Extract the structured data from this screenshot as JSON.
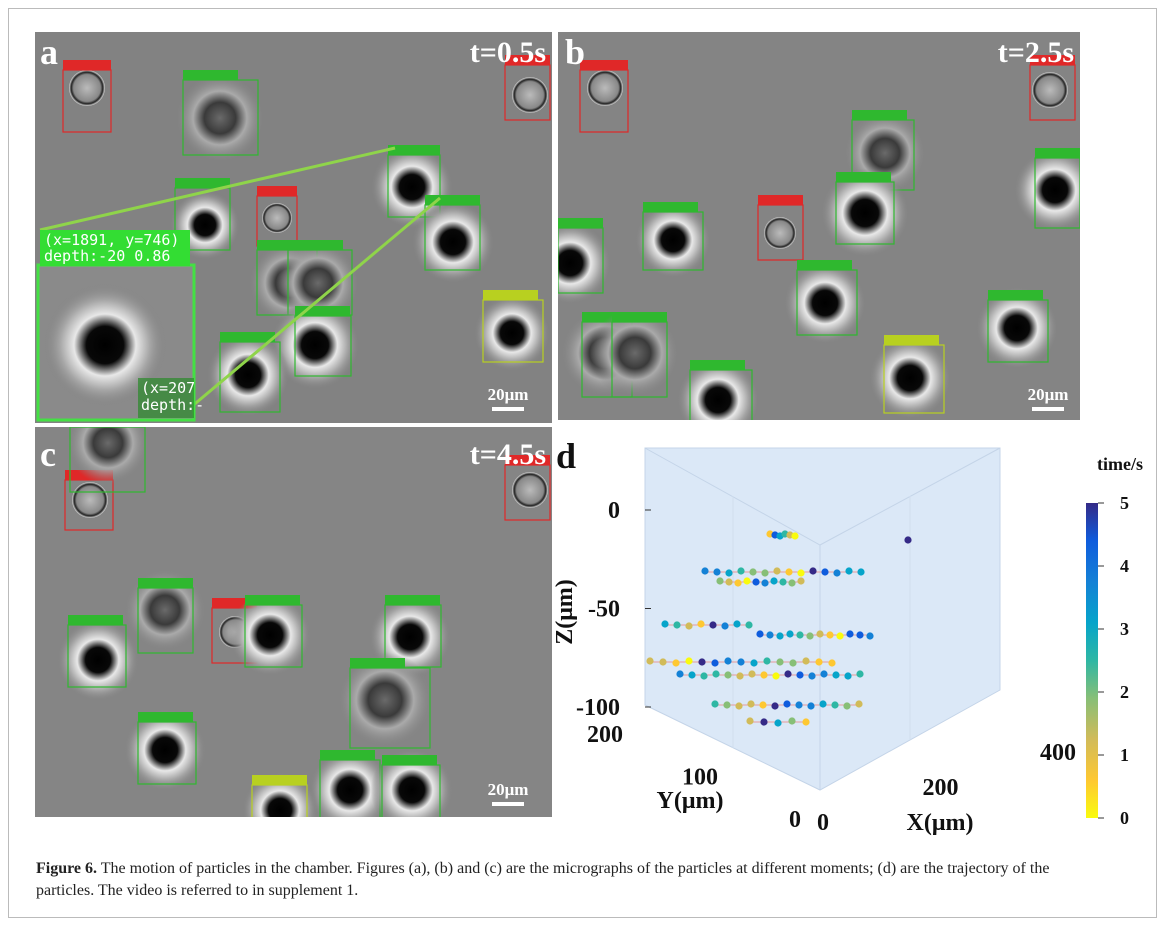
{
  "panels": {
    "a": {
      "label": "a",
      "time": "t=0.5s",
      "scale": "20μm",
      "inset": {
        "line1": "(x=1891, y=746)",
        "line2": "depth:-20 0.86",
        "partial1": "(x=207",
        "partial2": "depth:-"
      }
    },
    "b": {
      "label": "b",
      "time": "t=2.5s",
      "scale": "20μm"
    },
    "c": {
      "label": "c",
      "time": "t=4.5s",
      "scale": "20μm"
    },
    "d": {
      "label": "d",
      "z_label": "Z(μm)",
      "y_label": "Y(μm)",
      "x_label": "X(μm)",
      "z_ticks": [
        0,
        -50,
        -100
      ],
      "y_ticks": [
        200,
        100,
        0
      ],
      "x_ticks": [
        0,
        200,
        400
      ],
      "colorbar": {
        "title": "time/s",
        "ticks": [
          0,
          1,
          2,
          3,
          4,
          5
        ]
      }
    }
  },
  "caption": {
    "label": "Figure 6.",
    "text": "The motion of particles in the chamber. Figures (a), (b) and (c) are the micrographs of the particles at different moments; (d) are the trajectory of the particles. The video is referred to in supplement 1."
  }
}
